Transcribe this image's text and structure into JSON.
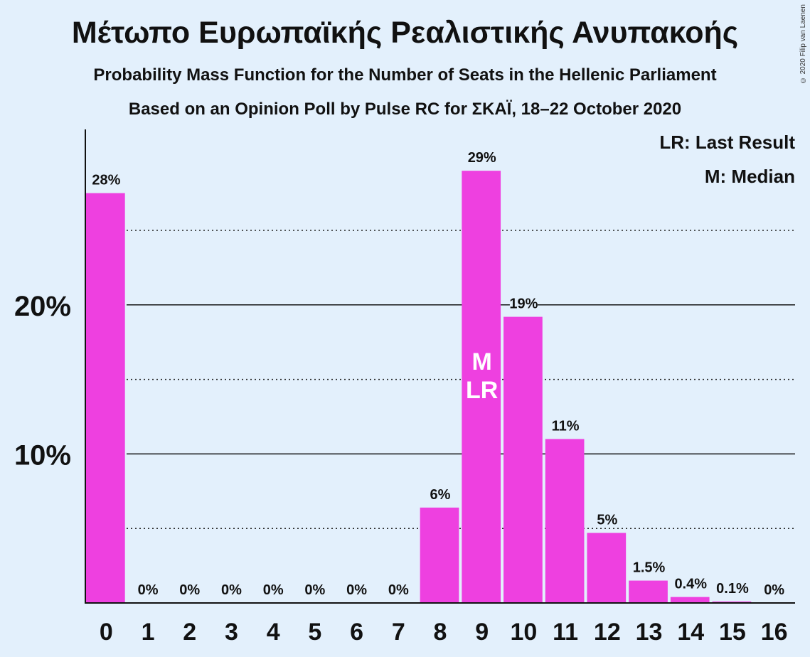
{
  "title": "Μέτωπο Ευρωπαϊκής Ρεαλιστικής Ανυπακοής",
  "subtitle1": "Probability Mass Function for the Number of Seats in the Hellenic Parliament",
  "subtitle2": "Based on an Opinion Poll by Pulse RC for ΣΚΑΪ, 18–22 October 2020",
  "copyright": "© 2020 Filip van Laenen",
  "legend": {
    "last_result": "LR: Last Result",
    "median": "M: Median"
  },
  "colors": {
    "bar": "#ee40e0",
    "background": "#e3f0fc",
    "text": "#111111"
  },
  "chart_data": {
    "type": "bar",
    "categories": [
      "0",
      "1",
      "2",
      "3",
      "4",
      "5",
      "6",
      "7",
      "8",
      "9",
      "10",
      "11",
      "12",
      "13",
      "14",
      "15",
      "16"
    ],
    "values": [
      27.5,
      0,
      0,
      0,
      0,
      0,
      0,
      0,
      6.4,
      29.0,
      19.2,
      11.0,
      4.7,
      1.5,
      0.4,
      0.1,
      0
    ],
    "labels": [
      "28%",
      "0%",
      "0%",
      "0%",
      "0%",
      "0%",
      "0%",
      "0%",
      "6%",
      "29%",
      "19%",
      "11%",
      "5%",
      "1.5%",
      "0.4%",
      "0.1%",
      "0%"
    ],
    "ylim": [
      0,
      31.5
    ],
    "yticks": [
      10,
      20
    ],
    "ytick_labels": [
      "10%",
      "20%"
    ],
    "minor_gridlines": [
      5,
      15,
      25
    ],
    "bar_annotations": [
      {
        "category": "9",
        "lines": [
          "M",
          "LR"
        ]
      }
    ]
  }
}
